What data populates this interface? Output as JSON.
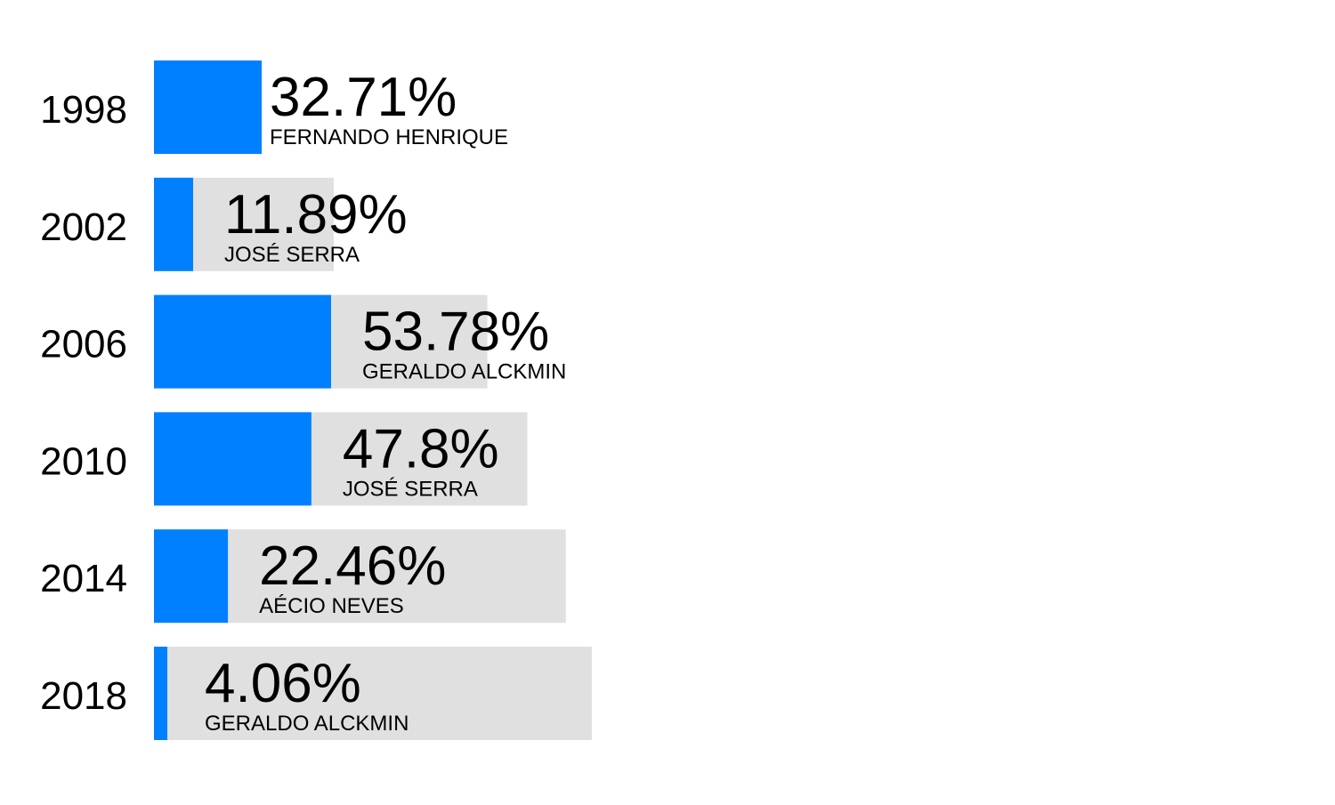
{
  "chart_data": {
    "type": "bar",
    "orientation": "horizontal",
    "categories": [
      "1998",
      "2002",
      "2006",
      "2010",
      "2014",
      "2018"
    ],
    "values": [
      32.71,
      11.89,
      53.78,
      47.8,
      22.46,
      4.06
    ],
    "value_labels": [
      "32.71%",
      "11.89%",
      "53.78%",
      "47.8%",
      "22.46%",
      "4.06%"
    ],
    "candidates": [
      "FERNANDO HENRIQUE",
      "JOSÉ SERRA",
      "GERALDO ALCKMIN",
      "JOSÉ SERRA",
      "AÉCIO NEVES",
      "GERALDO ALCKMIN"
    ],
    "background_values": [
      32.71,
      54.57,
      101.24,
      113.4,
      125.06,
      132.95
    ],
    "title": "",
    "xlabel": "",
    "ylabel": "",
    "grid": false,
    "legend": "none",
    "colors": {
      "bar": "#0080ff",
      "background_bar": "#e0e0e0",
      "text": "#000000"
    }
  }
}
